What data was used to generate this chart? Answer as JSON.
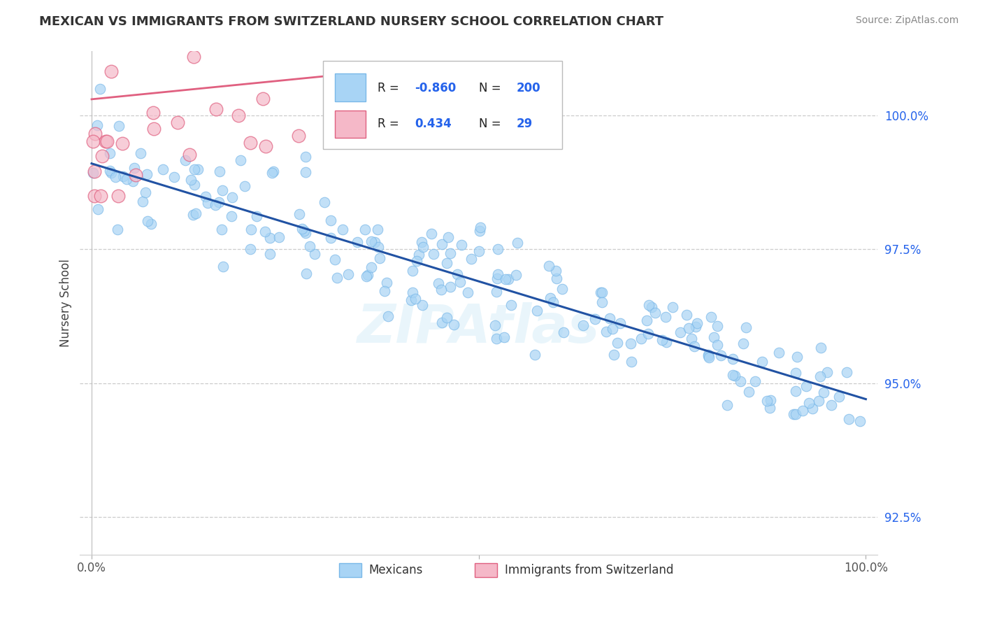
{
  "title": "MEXICAN VS IMMIGRANTS FROM SWITZERLAND NURSERY SCHOOL CORRELATION CHART",
  "source": "Source: ZipAtlas.com",
  "ylabel": "Nursery School",
  "xlim": [
    -1.5,
    101.5
  ],
  "ylim": [
    91.8,
    101.2
  ],
  "yticks_right": [
    92.5,
    95.0,
    97.5,
    100.0
  ],
  "ytick_labels_right": [
    "92.5%",
    "95.0%",
    "97.5%",
    "100.0%"
  ],
  "blue_R": -0.86,
  "blue_N": 200,
  "pink_R": 0.434,
  "pink_N": 29,
  "blue_color": "#a8d4f5",
  "blue_edge_color": "#7ab8e8",
  "blue_line_color": "#2152a3",
  "pink_color": "#f5b8c8",
  "pink_edge_color": "#e06080",
  "pink_line_color": "#e06080",
  "legend_label_blue": "Mexicans",
  "legend_label_pink": "Immigrants from Switzerland",
  "watermark": "ZIPAtlas",
  "background_color": "#ffffff",
  "grid_color": "#cccccc",
  "blue_line_start_y": 99.1,
  "blue_line_end_y": 94.7,
  "pink_line_start_x": 0,
  "pink_line_start_y": 100.3,
  "pink_line_end_x": 35,
  "pink_line_end_y": 100.8
}
